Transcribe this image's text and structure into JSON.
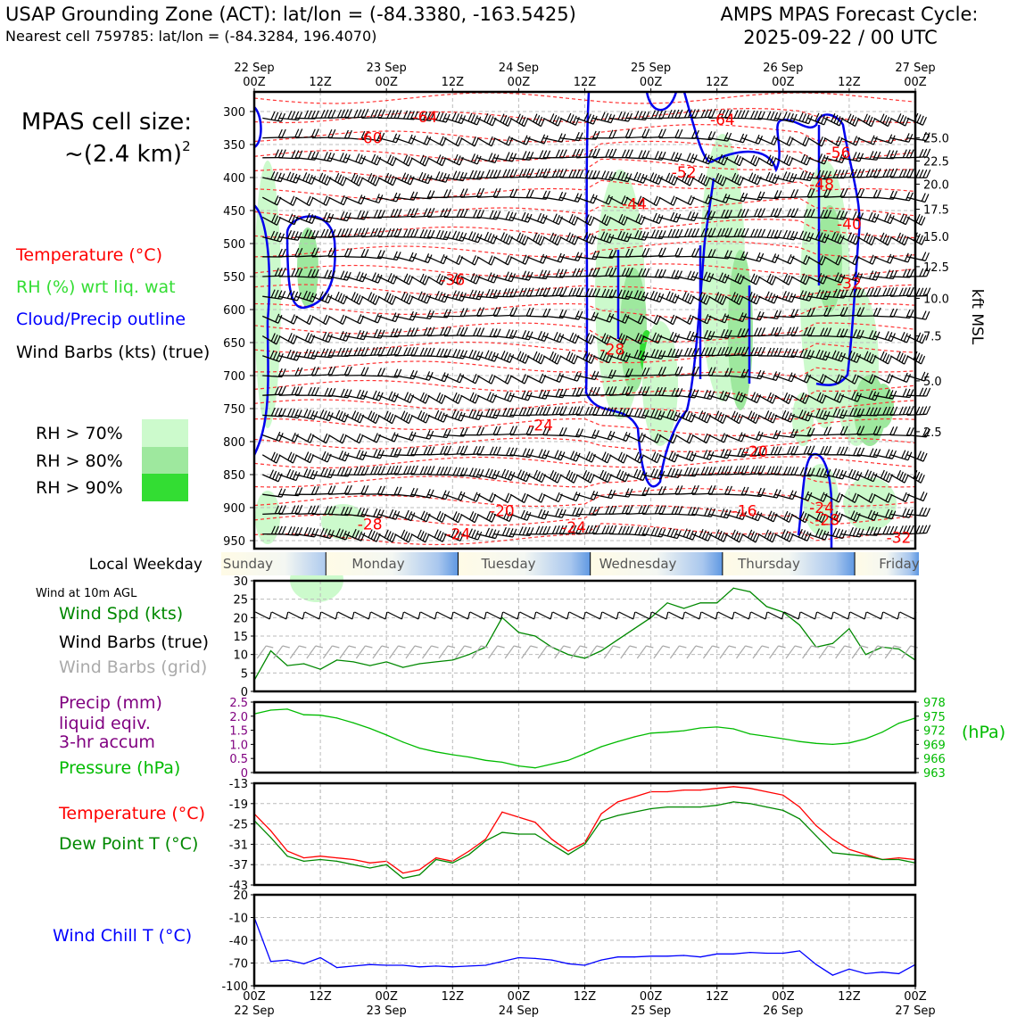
{
  "header": {
    "title_left": "USAP Grounding Zone (ACT): lat/lon = (-84.3380, -163.5425)",
    "subtitle_left": "Nearest cell 759785: lat/lon = (-84.3284, 196.4070)",
    "title_right_line1": "AMPS MPAS Forecast Cycle:",
    "title_right_line2": "2025-09-22 / 00 UTC"
  },
  "time_axis": {
    "ticks": [
      {
        "h": 0,
        "top": "22 Sep",
        "bottom": "00Z"
      },
      {
        "h": 12,
        "top": "",
        "bottom": "12Z"
      },
      {
        "h": 24,
        "top": "23 Sep",
        "bottom": "00Z"
      },
      {
        "h": 36,
        "top": "",
        "bottom": "12Z"
      },
      {
        "h": 48,
        "top": "24 Sep",
        "bottom": "00Z"
      },
      {
        "h": 60,
        "top": "",
        "bottom": "12Z"
      },
      {
        "h": 72,
        "top": "25 Sep",
        "bottom": "00Z"
      },
      {
        "h": 84,
        "top": "",
        "bottom": "12Z"
      },
      {
        "h": 96,
        "top": "26 Sep",
        "bottom": "00Z"
      },
      {
        "h": 108,
        "top": "",
        "bottom": "12Z"
      },
      {
        "h": 120,
        "top": "27 Sep",
        "bottom": "00Z"
      }
    ]
  },
  "sounding": {
    "cell_size_label": "MPAS cell size:",
    "cell_size_value": "~(2.4 km)",
    "cell_size_sup": "2",
    "legend": [
      {
        "label": "Temperature (°C)",
        "color": "#ff0000"
      },
      {
        "label": "RH (%) wrt liq. wat",
        "color": "#33dd33"
      },
      {
        "label": "Cloud/Precip outline",
        "color": "#0000ff"
      },
      {
        "label": "Wind Barbs (kts) (true)",
        "color": "#000000"
      }
    ],
    "rh_levels": [
      {
        "label": "RH > 70%",
        "color": "#ccfacc"
      },
      {
        "label": "RH > 80%",
        "color": "#9ee89e"
      },
      {
        "label": "RH > 90%",
        "color": "#33dd33"
      }
    ],
    "pressure_ticks": [
      300,
      350,
      400,
      450,
      500,
      550,
      600,
      650,
      700,
      750,
      800,
      850,
      900,
      950
    ],
    "kft_ticks": [
      {
        "p": 340,
        "v": "25.0"
      },
      {
        "p": 375,
        "v": "22.5"
      },
      {
        "p": 410,
        "v": "20.0"
      },
      {
        "p": 448,
        "v": "17.5"
      },
      {
        "p": 489,
        "v": "15.0"
      },
      {
        "p": 535,
        "v": "12.5"
      },
      {
        "p": 583,
        "v": "10.0"
      },
      {
        "p": 640,
        "v": "7.5"
      },
      {
        "p": 708,
        "v": "5.0"
      },
      {
        "p": 785,
        "v": "2.5"
      }
    ],
    "kft_label": "kft MSL",
    "temp_labels": [
      {
        "h": 31,
        "p": 308,
        "v": "-64"
      },
      {
        "h": 21,
        "p": 340,
        "v": "-60"
      },
      {
        "h": 85,
        "p": 312,
        "v": "-64"
      },
      {
        "h": 78,
        "p": 392,
        "v": "-52"
      },
      {
        "h": 106,
        "p": 362,
        "v": "-56"
      },
      {
        "h": 103,
        "p": 410,
        "v": "-48"
      },
      {
        "h": 69,
        "p": 440,
        "v": "-44"
      },
      {
        "h": 108,
        "p": 470,
        "v": "-40"
      },
      {
        "h": 36,
        "p": 555,
        "v": "-36"
      },
      {
        "h": 108,
        "p": 560,
        "v": "-32"
      },
      {
        "h": 65,
        "p": 660,
        "v": "-28"
      },
      {
        "h": 52,
        "p": 775,
        "v": "-24"
      },
      {
        "h": 91,
        "p": 815,
        "v": "-20"
      },
      {
        "h": 45,
        "p": 905,
        "v": "-20"
      },
      {
        "h": 89,
        "p": 905,
        "v": "-16"
      },
      {
        "h": 103,
        "p": 900,
        "v": "-24"
      },
      {
        "h": 104,
        "p": 918,
        "v": "-28"
      },
      {
        "h": 21,
        "p": 925,
        "v": "-28"
      },
      {
        "h": 37,
        "p": 940,
        "v": "-24"
      },
      {
        "h": 58,
        "p": 930,
        "v": "-24"
      },
      {
        "h": 117,
        "p": 945,
        "v": "-32"
      }
    ]
  },
  "weekday_band": {
    "label": "Local Weekday",
    "days": [
      "Sunday",
      "Monday",
      "Tuesday",
      "Wednesday",
      "Thursday",
      "Friday"
    ]
  },
  "wind_panel": {
    "caption": "Wind at 10m AGL",
    "legend": [
      {
        "label": "Wind Spd (kts)",
        "color": "#008800"
      },
      {
        "label": "Wind Barbs (true)",
        "color": "#000000"
      },
      {
        "label": "Wind Barbs (grid)",
        "color": "#aaaaaa"
      }
    ],
    "yticks": [
      "30",
      "25",
      "20",
      "15",
      "10",
      "5",
      "0"
    ]
  },
  "precip_panel": {
    "legend": [
      {
        "label": "Precip (mm)",
        "color": "#800080"
      },
      {
        "label": "liquid eqiv.",
        "color": "#800080"
      },
      {
        "label": "3-hr accum",
        "color": "#800080"
      },
      {
        "label": "Pressure (hPa)",
        "color": "#00bb00"
      }
    ],
    "left_ticks": [
      "2.5",
      "2.0",
      "1.5",
      "1.0",
      "0.5",
      "0"
    ],
    "right_ticks": [
      "978",
      "975",
      "972",
      "969",
      "966",
      "963"
    ],
    "right_unit": "(hPa)"
  },
  "temp_panel": {
    "legend": [
      {
        "label": "Temperature (°C)",
        "color": "#ff0000"
      },
      {
        "label": "Dew Point T (°C)",
        "color": "#008800"
      }
    ],
    "yticks": [
      "-13",
      "-19",
      "-25",
      "-31",
      "-37",
      "-43"
    ]
  },
  "windchill_panel": {
    "legend": [
      {
        "label": "Wind Chill T (°C)",
        "color": "#0000ff"
      }
    ],
    "yticks": [
      "20",
      "-10",
      "-40",
      "-70",
      "-100"
    ]
  },
  "chart_data": [
    {
      "type": "line",
      "name": "Wind Spd (kts)",
      "x_hours": [
        0,
        3,
        6,
        9,
        12,
        15,
        18,
        21,
        24,
        27,
        30,
        33,
        36,
        39,
        42,
        45,
        48,
        51,
        54,
        57,
        60,
        63,
        66,
        69,
        72,
        75,
        78,
        81,
        84,
        87,
        90,
        93,
        96,
        99,
        102,
        105,
        108,
        111,
        114,
        117,
        120
      ],
      "values": [
        3,
        11,
        7,
        7.5,
        6,
        8.5,
        8,
        7,
        8,
        6.5,
        7.5,
        8,
        8.5,
        10,
        12,
        20,
        16,
        15,
        12,
        10,
        9,
        11,
        14,
        17,
        20,
        24,
        22.5,
        24,
        24,
        28,
        27,
        23,
        21.5,
        18,
        12,
        13,
        17,
        10,
        12,
        11.5,
        8.5
      ],
      "ylim": [
        0,
        30
      ]
    },
    {
      "type": "line",
      "name": "Pressure (hPa)",
      "x_hours": [
        0,
        3,
        6,
        9,
        12,
        15,
        18,
        21,
        24,
        27,
        30,
        33,
        36,
        39,
        42,
        45,
        48,
        51,
        54,
        57,
        60,
        63,
        66,
        69,
        72,
        75,
        78,
        81,
        84,
        87,
        90,
        93,
        96,
        99,
        102,
        105,
        108,
        111,
        114,
        117,
        120
      ],
      "values": [
        975.5,
        976.3,
        976.5,
        975.3,
        975.2,
        974.6,
        973.6,
        972.4,
        971.0,
        969.5,
        968.2,
        967.4,
        966.8,
        966.3,
        965.6,
        965.2,
        964.4,
        964.0,
        964.8,
        965.6,
        967.0,
        968.5,
        969.6,
        970.6,
        971.4,
        971.6,
        971.9,
        972.5,
        972.7,
        972.3,
        971.2,
        970.7,
        970.2,
        969.6,
        969.2,
        969.0,
        969.3,
        970.2,
        971.6,
        973.5,
        974.6
      ],
      "ylim": [
        963,
        978
      ]
    },
    {
      "type": "line",
      "name": "Temperature (°C)",
      "x_hours": [
        0,
        3,
        6,
        9,
        12,
        15,
        18,
        21,
        24,
        27,
        30,
        33,
        36,
        39,
        42,
        45,
        48,
        51,
        54,
        57,
        60,
        63,
        66,
        69,
        72,
        75,
        78,
        81,
        84,
        87,
        90,
        93,
        96,
        99,
        102,
        105,
        108,
        111,
        114,
        117,
        120
      ],
      "values": [
        -22,
        -27,
        -33,
        -35,
        -34.5,
        -35,
        -35.5,
        -36.5,
        -36,
        -39.5,
        -38.5,
        -35,
        -36,
        -33,
        -29.5,
        -21.5,
        -23,
        -24.5,
        -29.5,
        -33,
        -30.5,
        -22,
        -18.5,
        -17,
        -15.5,
        -15.5,
        -15,
        -15,
        -14.5,
        -14,
        -14.5,
        -15.5,
        -16.5,
        -20,
        -25.5,
        -29.5,
        -32.5,
        -34,
        -35.5,
        -35,
        -35.5
      ],
      "ylim": [
        -43,
        -13
      ]
    },
    {
      "type": "line",
      "name": "Dew Point T (°C)",
      "x_hours": [
        0,
        3,
        6,
        9,
        12,
        15,
        18,
        21,
        24,
        27,
        30,
        33,
        36,
        39,
        42,
        45,
        48,
        51,
        54,
        57,
        60,
        63,
        66,
        69,
        72,
        75,
        78,
        81,
        84,
        87,
        90,
        93,
        96,
        99,
        102,
        105,
        108,
        111,
        114,
        117,
        120
      ],
      "values": [
        -24,
        -29,
        -34.5,
        -36,
        -35.5,
        -36,
        -37,
        -38,
        -37,
        -41,
        -40,
        -35.5,
        -36.5,
        -34,
        -30,
        -27.5,
        -28,
        -28,
        -31,
        -34,
        -31,
        -24,
        -22.5,
        -21.5,
        -20.5,
        -20,
        -20,
        -20,
        -19.5,
        -18.5,
        -19,
        -20,
        -21,
        -23.5,
        -28.5,
        -33.5,
        -34,
        -34.5,
        -35.5,
        -35.5,
        -36.5
      ],
      "ylim": [
        -43,
        -13
      ]
    },
    {
      "type": "line",
      "name": "Wind Chill T (°C)",
      "x_hours": [
        0,
        3,
        6,
        9,
        12,
        15,
        18,
        21,
        24,
        27,
        30,
        33,
        36,
        39,
        42,
        45,
        48,
        51,
        54,
        57,
        60,
        63,
        66,
        69,
        72,
        75,
        78,
        81,
        84,
        87,
        90,
        93,
        96,
        99,
        102,
        105,
        108,
        111,
        114,
        117,
        120
      ],
      "values": [
        -10,
        -68,
        -66,
        -71,
        -63,
        -76,
        -74,
        -72,
        -73,
        -73,
        -75,
        -74,
        -75,
        -74,
        -73,
        -68,
        -63,
        -64,
        -66,
        -71,
        -73,
        -66,
        -62,
        -62,
        -61,
        -61,
        -60,
        -62,
        -58,
        -58,
        -56,
        -57,
        -57,
        -54,
        -72,
        -86,
        -78,
        -84,
        -82,
        -84,
        -72
      ],
      "ylim": [
        -100,
        20
      ]
    }
  ]
}
